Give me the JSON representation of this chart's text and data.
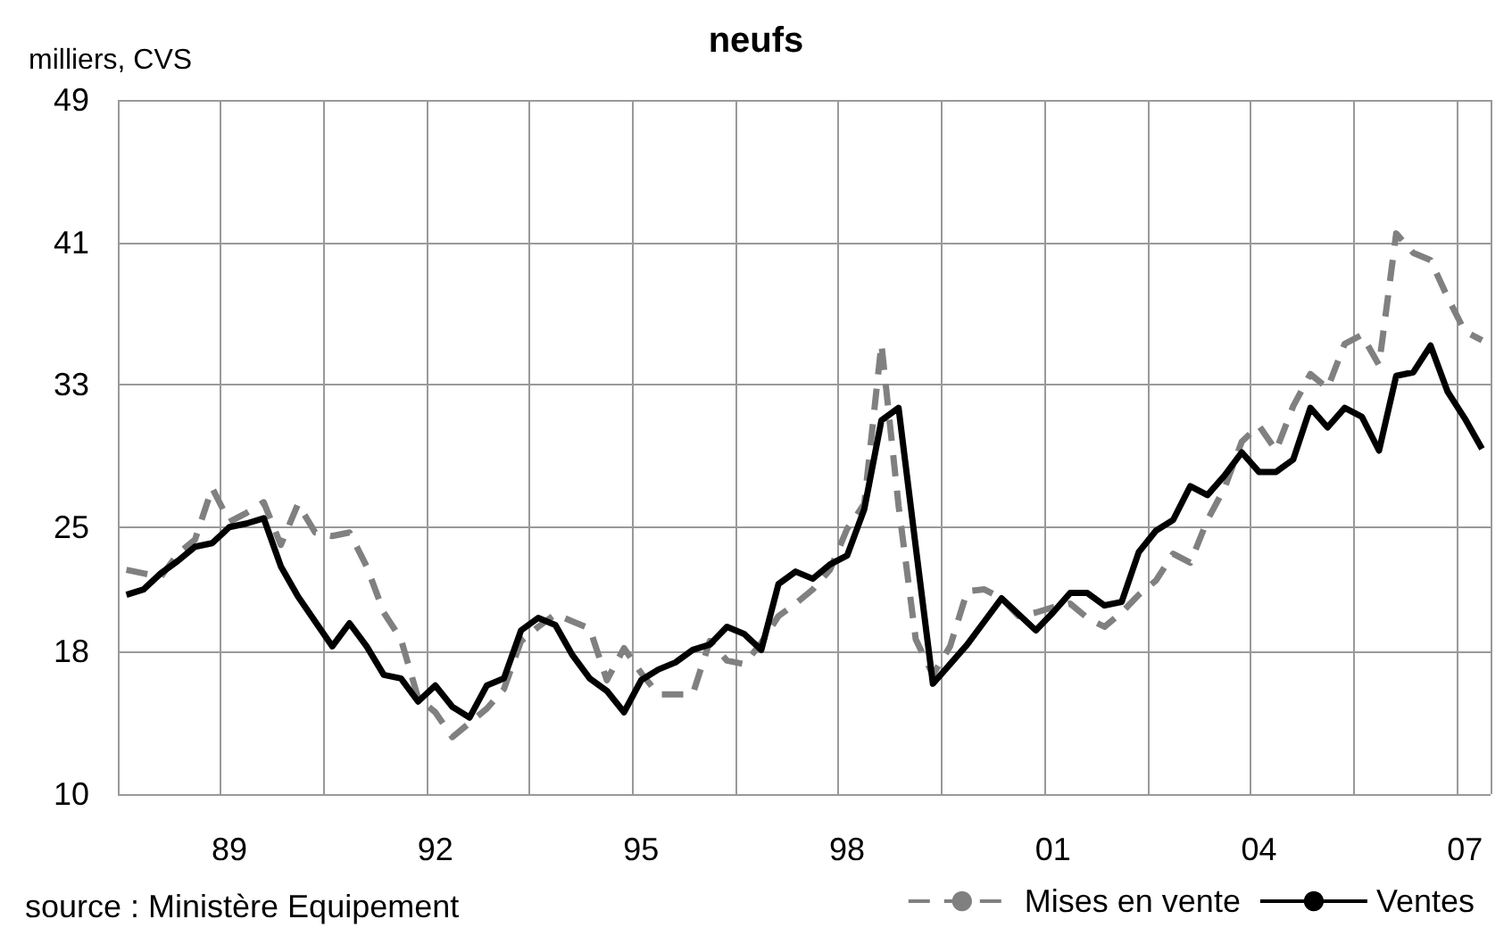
{
  "chart_data": {
    "type": "line",
    "title": "neufs",
    "ylabel": "milliers, CVS",
    "annotations": [
      "source : Ministère Equipement"
    ],
    "categories": [
      null,
      null,
      null,
      null,
      null,
      null,
      "89",
      null,
      null,
      null,
      null,
      null,
      null,
      null,
      null,
      null,
      null,
      null,
      "92",
      null,
      null,
      null,
      null,
      null,
      null,
      null,
      null,
      null,
      null,
      null,
      "95",
      null,
      null,
      null,
      null,
      null,
      null,
      null,
      null,
      null,
      null,
      null,
      "98",
      null,
      null,
      null,
      null,
      null,
      null,
      null,
      null,
      null,
      null,
      null,
      "01",
      null,
      null,
      null,
      null,
      null,
      null,
      null,
      null,
      null,
      null,
      null,
      "04",
      null,
      null,
      null,
      null,
      null,
      null,
      null,
      null,
      null,
      null,
      null,
      "07",
      null
    ],
    "series": [
      {
        "name": "Mises en vente",
        "color": "#808080",
        "line_style": "dashed",
        "values": [
          22.6,
          22.4,
          22.2,
          23.5,
          24.3,
          27.2,
          25.3,
          25.8,
          26.4,
          24.0,
          26.3,
          24.7,
          24.5,
          24.7,
          22.8,
          20.2,
          18.7,
          15.4,
          14.6,
          13.2,
          14.0,
          14.8,
          15.9,
          18.6,
          19.4,
          20.1,
          19.7,
          19.3,
          16.4,
          18.2,
          16.8,
          15.6,
          15.6,
          15.6,
          18.6,
          17.5,
          17.3,
          18.5,
          20.0,
          20.7,
          21.5,
          22.6,
          24.9,
          26.3,
          35.3,
          26.2,
          18.7,
          16.7,
          18.3,
          21.4,
          21.5,
          21.0,
          20.0,
          20.2,
          20.5,
          20.7,
          19.9,
          19.4,
          20.2,
          21.2,
          22.0,
          23.5,
          23.0,
          25.4,
          27.2,
          29.8,
          30.7,
          29.3,
          31.8,
          33.6,
          32.8,
          35.3,
          35.8,
          34.1,
          41.5,
          40.4,
          40.0,
          37.9,
          36.0,
          35.5
        ]
      },
      {
        "name": "Ventes",
        "color": "#000000",
        "line_style": "solid",
        "values": [
          21.2,
          21.5,
          22.4,
          23.1,
          23.9,
          24.1,
          25.0,
          25.2,
          25.5,
          22.8,
          21.1,
          19.7,
          18.3,
          19.6,
          18.3,
          16.7,
          16.5,
          15.2,
          16.1,
          14.9,
          14.3,
          16.1,
          16.5,
          19.2,
          19.9,
          19.5,
          17.8,
          16.5,
          15.8,
          14.6,
          16.4,
          17.0,
          17.4,
          18.1,
          18.4,
          19.4,
          19.0,
          18.1,
          21.8,
          22.5,
          22.1,
          22.9,
          23.4,
          26.0,
          31.0,
          31.7,
          23.9,
          16.2,
          17.3,
          18.4,
          19.7,
          21.0,
          20.1,
          19.2,
          20.2,
          21.3,
          21.3,
          20.6,
          20.8,
          23.6,
          24.8,
          25.4,
          27.3,
          26.8,
          27.9,
          29.2,
          28.1,
          28.1,
          28.8,
          31.7,
          30.6,
          31.7,
          31.2,
          29.3,
          33.5,
          33.7,
          35.2,
          32.6,
          31.1,
          29.4
        ]
      }
    ],
    "ylim": [
      10,
      49
    ],
    "yticks": [
      10,
      18,
      25,
      33,
      41,
      49
    ],
    "grid": true,
    "legend": "bottom right"
  }
}
